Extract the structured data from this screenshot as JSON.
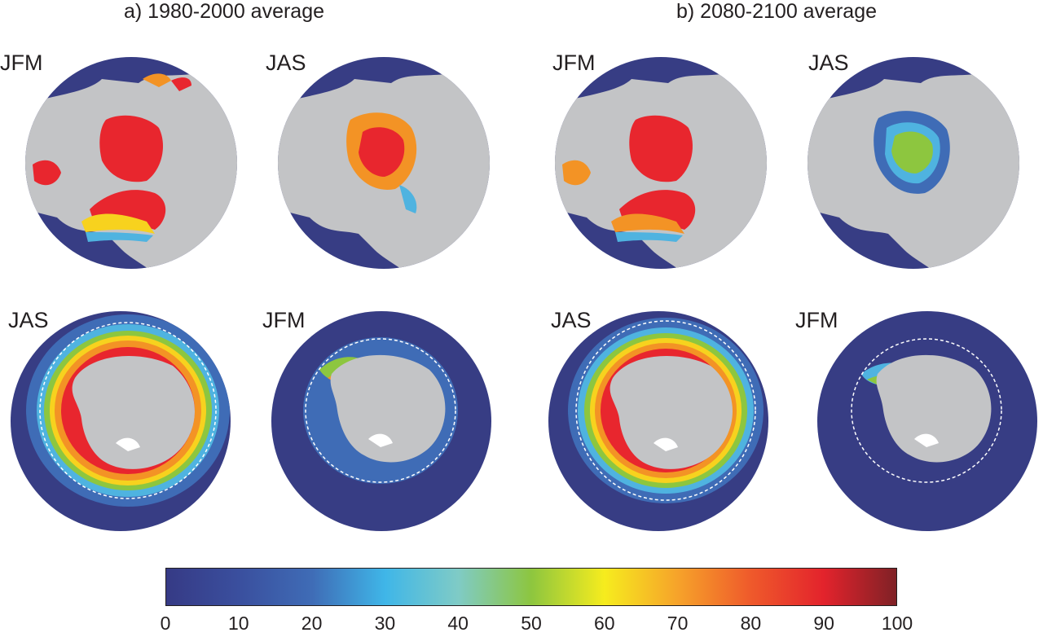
{
  "panels": [
    {
      "title": "a) 1980-2000 average",
      "maps": [
        {
          "season": "JFM",
          "hemisphere": "north"
        },
        {
          "season": "JAS",
          "hemisphere": "north"
        },
        {
          "season": "JAS",
          "hemisphere": "south"
        },
        {
          "season": "JFM",
          "hemisphere": "south"
        }
      ]
    },
    {
      "title": "b) 2080-2100 average",
      "maps": [
        {
          "season": "JFM",
          "hemisphere": "north"
        },
        {
          "season": "JAS",
          "hemisphere": "north"
        },
        {
          "season": "JAS",
          "hemisphere": "south"
        },
        {
          "season": "JFM",
          "hemisphere": "south"
        }
      ]
    }
  ],
  "colorbar": {
    "ticks": [
      "0",
      "10",
      "20",
      "30",
      "40",
      "50",
      "60",
      "70",
      "80",
      "90",
      "100"
    ],
    "min": 0,
    "max": 100,
    "colors": {
      "ocean": "#373d84",
      "land": "#c3c4c6",
      "outline": "#ffffff",
      "low": "#3b3f8d",
      "mid": "#8dc63f",
      "high": "#e8262e"
    }
  }
}
